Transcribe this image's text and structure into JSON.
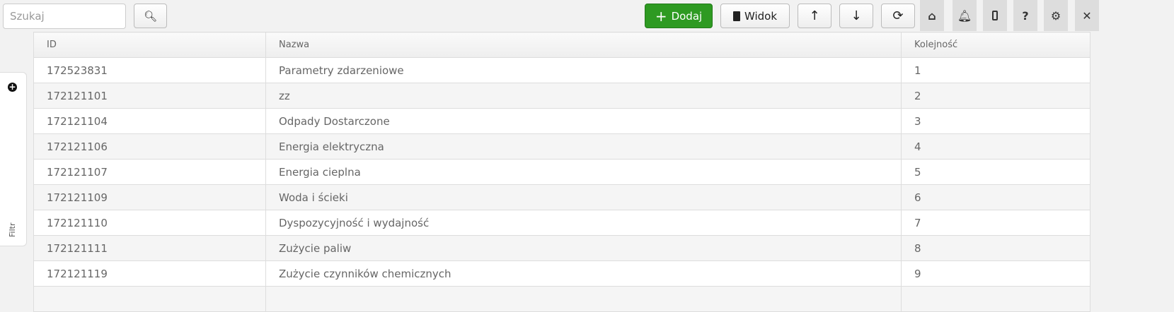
{
  "toolbar": {
    "search_placeholder": "Szukaj",
    "add_label": "Dodaj",
    "view_label": "Widok"
  },
  "filter": {
    "label": "Filtr"
  },
  "table": {
    "columns": [
      "ID",
      "Nazwa",
      "Kolejność"
    ],
    "rows": [
      [
        "172523831",
        "Parametry zdarzeniowe",
        "1"
      ],
      [
        "172121101",
        "zz",
        "2"
      ],
      [
        "172121104",
        "Odpady Dostarczone",
        "3"
      ],
      [
        "172121106",
        "Energia elektryczna",
        "4"
      ],
      [
        "172121107",
        "Energia cieplna",
        "5"
      ],
      [
        "172121109",
        "Woda i ścieki",
        "6"
      ],
      [
        "172121110",
        "Dyspozycyjność i wydajność",
        "7"
      ],
      [
        "172121111",
        "Zużycie paliw",
        "8"
      ],
      [
        "172121119",
        "Zużycie czynników chemicznych",
        "9"
      ],
      [
        "",
        "",
        ""
      ]
    ]
  },
  "colors": {
    "add_button": "#2e9a22"
  }
}
